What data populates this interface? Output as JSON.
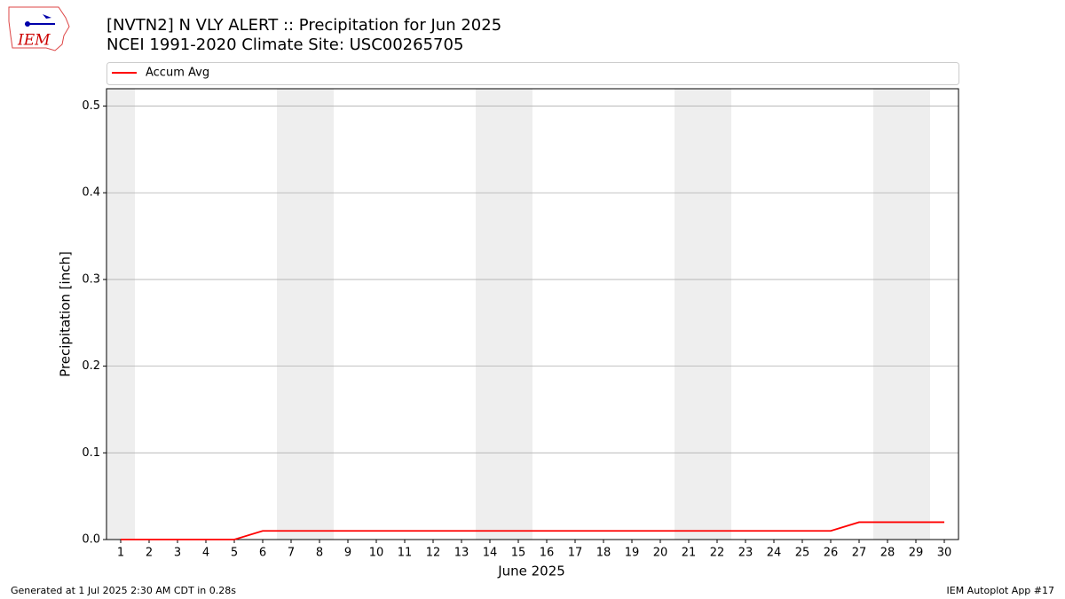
{
  "logo": "IEM",
  "footer_left": "Generated at 1 Jul 2025 2:30 AM CDT in 0.28s",
  "footer_right": "IEM Autoplot App #17",
  "chart_data": {
    "type": "line",
    "title": "[NVTN2] N VLY ALERT :: Precipitation for Jun 2025",
    "subtitle": "NCEI 1991-2020 Climate Site: USC00265705",
    "x_label": "June 2025",
    "y_label": "Precipitation [inch]",
    "x": [
      1,
      2,
      3,
      4,
      5,
      6,
      7,
      8,
      9,
      10,
      11,
      12,
      13,
      14,
      15,
      16,
      17,
      18,
      19,
      20,
      21,
      22,
      23,
      24,
      25,
      26,
      27,
      28,
      29,
      30
    ],
    "series": [
      {
        "name": "Accum Avg",
        "color": "#ff0000",
        "values": [
          0,
          0,
          0,
          0,
          0,
          0.01,
          0.01,
          0.01,
          0.01,
          0.01,
          0.01,
          0.01,
          0.01,
          0.01,
          0.01,
          0.01,
          0.01,
          0.01,
          0.01,
          0.01,
          0.01,
          0.01,
          0.01,
          0.01,
          0.01,
          0.01,
          0.02,
          0.02,
          0.02,
          0.02
        ]
      }
    ],
    "shaded_days": [
      1,
      7,
      8,
      14,
      15,
      21,
      22,
      28,
      29
    ],
    "xlim": [
      0.5,
      30.5
    ],
    "xticks": [
      1,
      2,
      3,
      4,
      5,
      6,
      7,
      8,
      9,
      10,
      11,
      12,
      13,
      14,
      15,
      16,
      17,
      18,
      19,
      20,
      21,
      22,
      23,
      24,
      25,
      26,
      27,
      28,
      29,
      30
    ],
    "ylim": [
      0,
      0.52
    ],
    "yticks": [
      {
        "value": 0,
        "label": "0.0"
      },
      0.1,
      0.2,
      0.3,
      0.4,
      0.5
    ],
    "grid": true,
    "legend": "top"
  }
}
